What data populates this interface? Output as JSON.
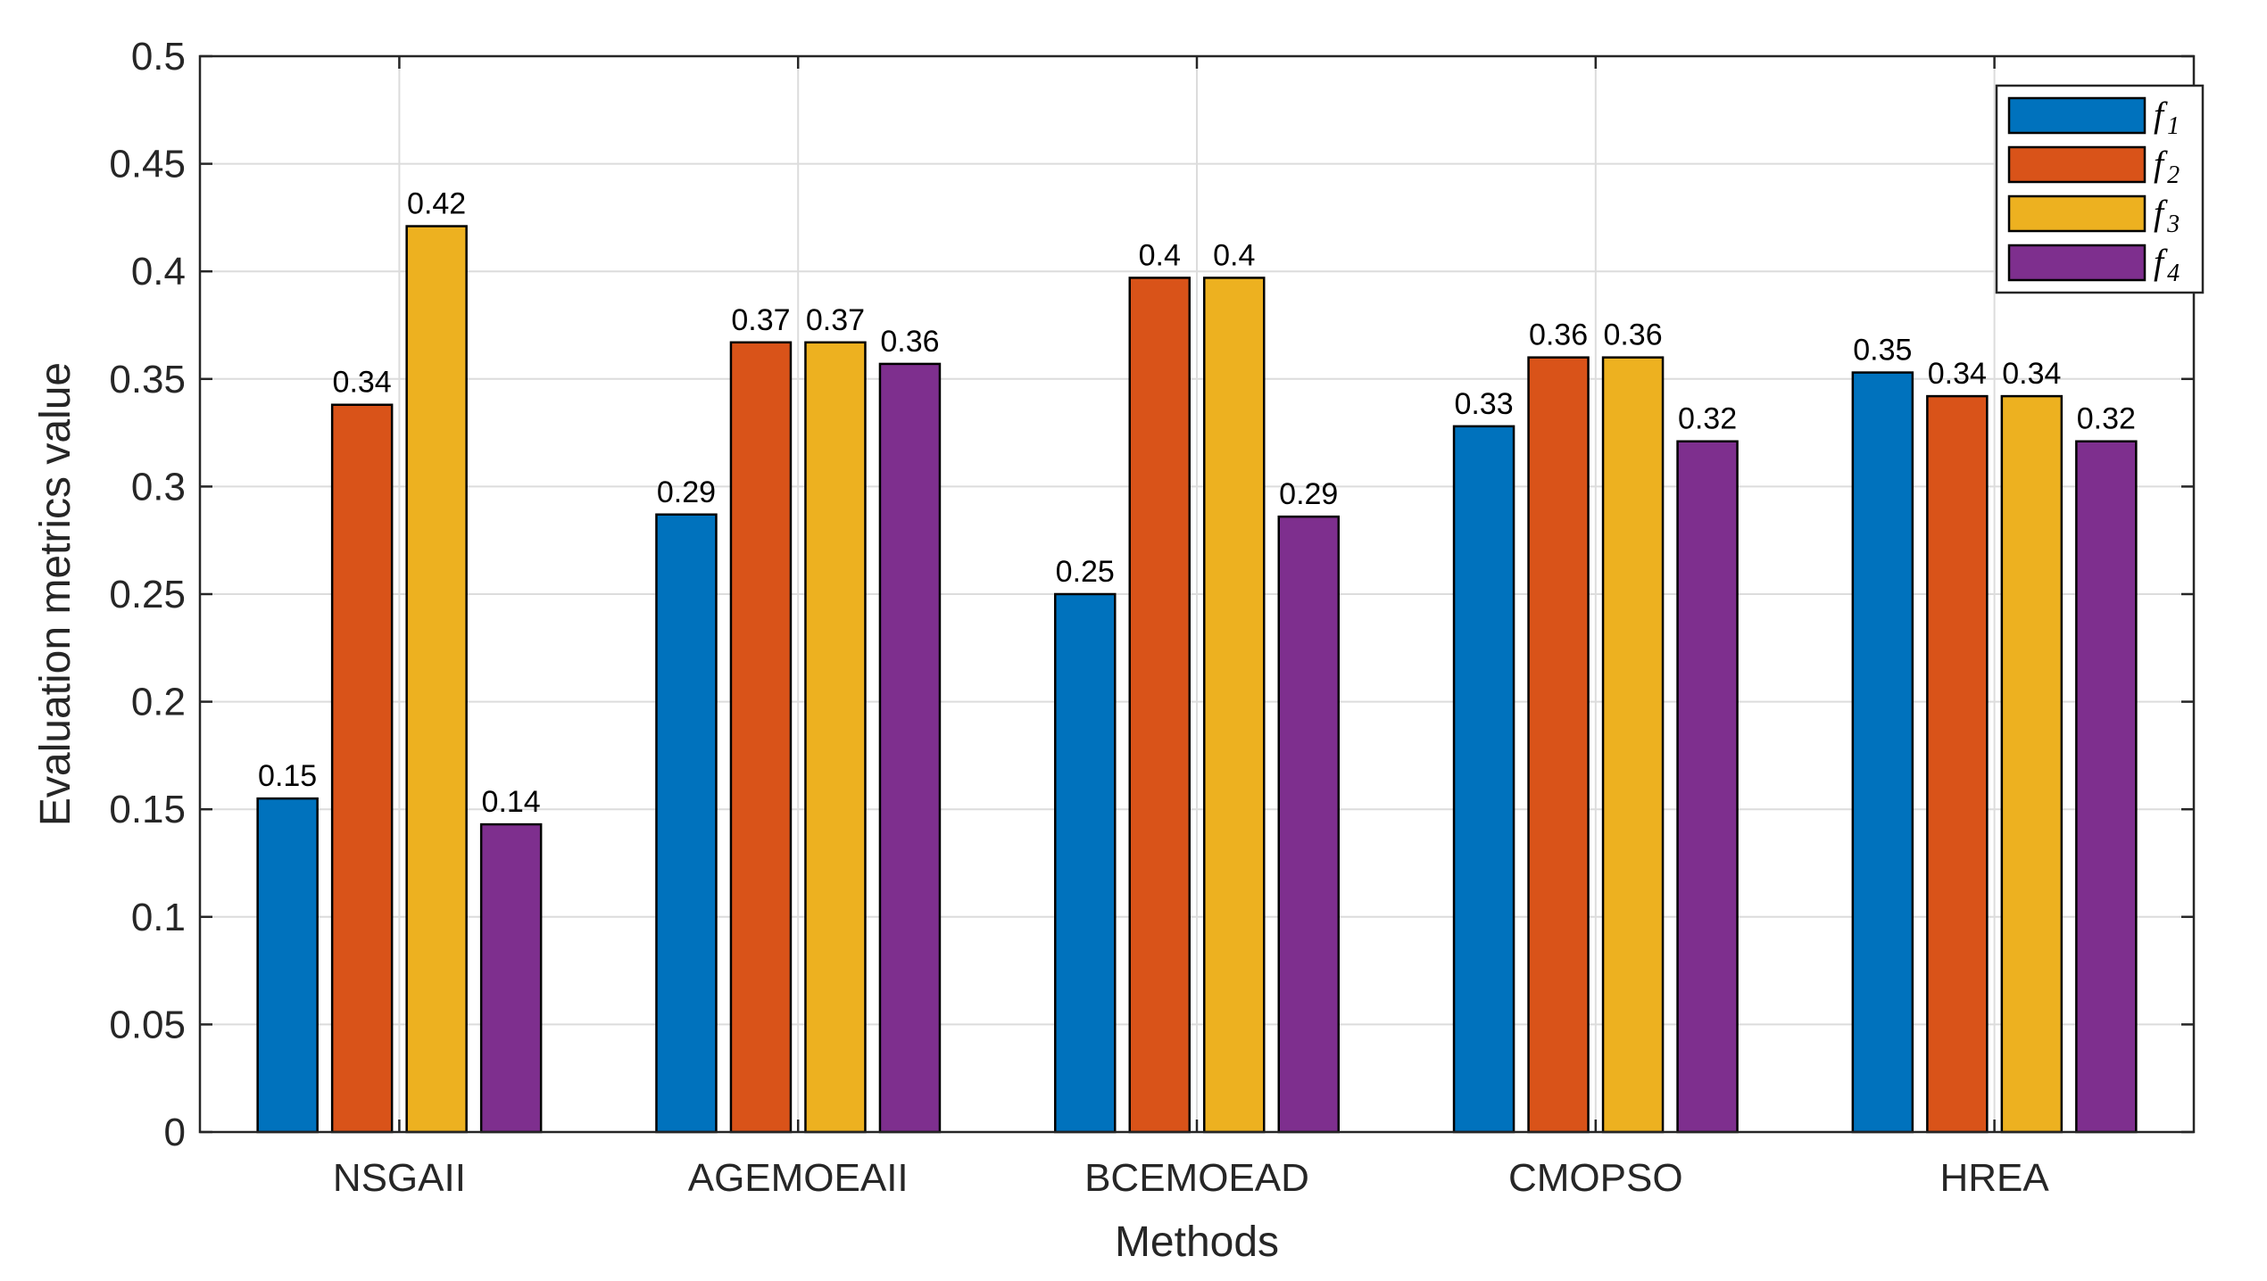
{
  "chart_data": {
    "type": "bar",
    "title": "",
    "xlabel": "Methods",
    "ylabel": "Evaluation metrics value",
    "ylim": [
      0,
      0.5
    ],
    "yticks": [
      0,
      0.05,
      0.1,
      0.15,
      0.2,
      0.25,
      0.3,
      0.35,
      0.4,
      0.45,
      0.5
    ],
    "ytick_labels": [
      "0",
      "0.05",
      "0.1",
      "0.15",
      "0.2",
      "0.25",
      "0.3",
      "0.35",
      "0.4",
      "0.45",
      "0.5"
    ],
    "grid": true,
    "legend_position": "top-right",
    "categories": [
      "NSGAII",
      "AGEMOEAII",
      "BCEMOEAD",
      "CMOPSO",
      "HREA"
    ],
    "series": [
      {
        "name": "f1",
        "base": "f",
        "sub": "1",
        "color": "#0072BD",
        "values": [
          0.155,
          0.287,
          0.25,
          0.328,
          0.353
        ],
        "labels": [
          "0.15",
          "0.29",
          "0.25",
          "0.33",
          "0.35"
        ]
      },
      {
        "name": "f2",
        "base": "f",
        "sub": "2",
        "color": "#D95319",
        "values": [
          0.338,
          0.367,
          0.397,
          0.36,
          0.342
        ],
        "labels": [
          "0.34",
          "0.37",
          "0.4",
          "0.36",
          "0.34"
        ]
      },
      {
        "name": "f3",
        "base": "f",
        "sub": "3",
        "color": "#EDB120",
        "values": [
          0.421,
          0.367,
          0.397,
          0.36,
          0.342
        ],
        "labels": [
          "0.42",
          "0.37",
          "0.4",
          "0.36",
          "0.34"
        ]
      },
      {
        "name": "f4",
        "base": "f",
        "sub": "4",
        "color": "#7E2F8E",
        "values": [
          0.143,
          0.357,
          0.286,
          0.321,
          0.321
        ],
        "labels": [
          "0.14",
          "0.36",
          "0.29",
          "0.32",
          "0.32"
        ]
      }
    ]
  }
}
